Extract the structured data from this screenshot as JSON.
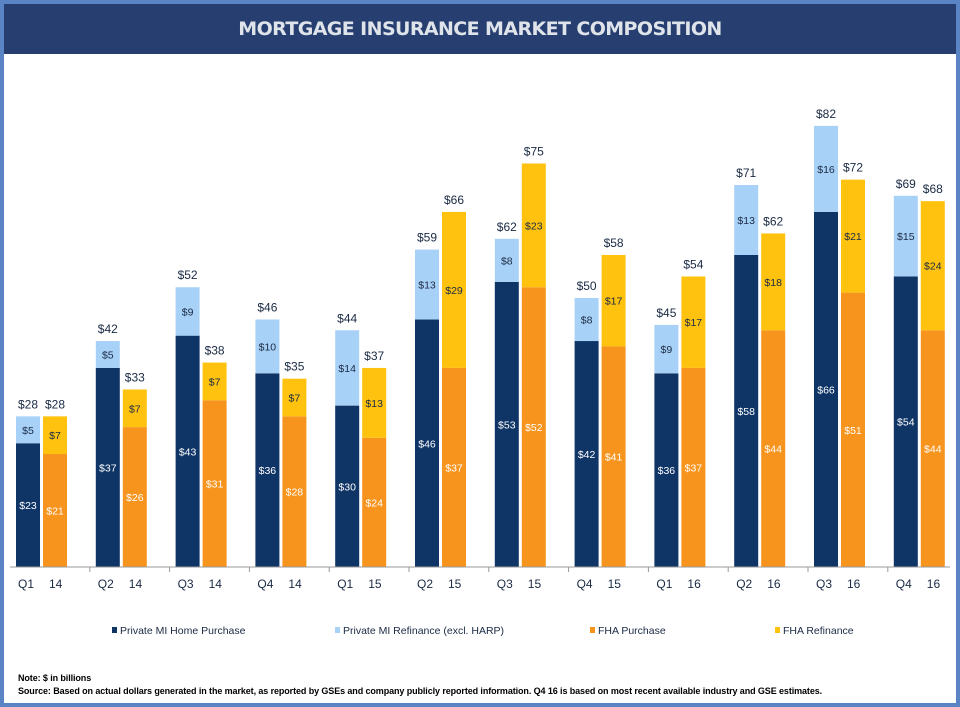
{
  "header": {
    "title": "MORTGAGE INSURANCE MARKET COMPOSITION"
  },
  "chart_data": {
    "type": "bar",
    "stacked": true,
    "grouped": true,
    "title": "MORTGAGE INSURANCE MARKET COMPOSITION",
    "categories": [
      [
        "Q1",
        "14"
      ],
      [
        "Q2",
        "14"
      ],
      [
        "Q3",
        "14"
      ],
      [
        "Q4",
        "14"
      ],
      [
        "Q1",
        "15"
      ],
      [
        "Q2",
        "15"
      ],
      [
        "Q3",
        "15"
      ],
      [
        "Q4",
        "15"
      ],
      [
        "Q1",
        "16"
      ],
      [
        "Q2",
        "16"
      ],
      [
        "Q3",
        "16"
      ],
      [
        "Q4",
        "16"
      ]
    ],
    "groups": [
      {
        "totals": [
          28,
          42,
          52,
          46,
          44,
          59,
          62,
          50,
          45,
          71,
          82,
          69
        ],
        "series": [
          {
            "name": "Private MI Home Purchase",
            "color": "#0f3466",
            "label_color": "#ffffff",
            "values": [
              23,
              37,
              43,
              36,
              30,
              46,
              53,
              42,
              36,
              58,
              66,
              54
            ]
          },
          {
            "name": "Private MI Refinance (excl. HARP)",
            "color": "#a8d1f7",
            "label_color": "#1a2a44",
            "values": [
              5,
              5,
              9,
              10,
              14,
              13,
              8,
              8,
              9,
              13,
              16,
              15
            ]
          }
        ]
      },
      {
        "totals": [
          28,
          33,
          38,
          35,
          37,
          66,
          75,
          58,
          54,
          62,
          72,
          68
        ],
        "series": [
          {
            "name": "FHA Purchase",
            "color": "#f7941d",
            "label_color": "#ffffff",
            "values": [
              21,
              26,
              31,
              28,
              24,
              37,
              52,
              41,
              37,
              44,
              51,
              44
            ]
          },
          {
            "name": "FHA Refinance",
            "color": "#ffc20e",
            "label_color": "#1a2a44",
            "values": [
              7,
              7,
              7,
              7,
              13,
              29,
              23,
              17,
              17,
              18,
              21,
              24
            ]
          }
        ]
      }
    ],
    "value_prefix": "$",
    "ylim": [
      0,
      85
    ],
    "grid": false,
    "legend_position": "bottom"
  },
  "legend": [
    "Private MI Home Purchase",
    "Private MI Refinance (excl. HARP)",
    "FHA Purchase",
    "FHA Refinance"
  ],
  "notes": {
    "note": "Note:  $ in billions",
    "source": "Source: Based on actual dollars generated in the market, as reported by GSEs and company publicly reported information.  Q4 16 is based on most recent available  industry and GSE estimates."
  }
}
